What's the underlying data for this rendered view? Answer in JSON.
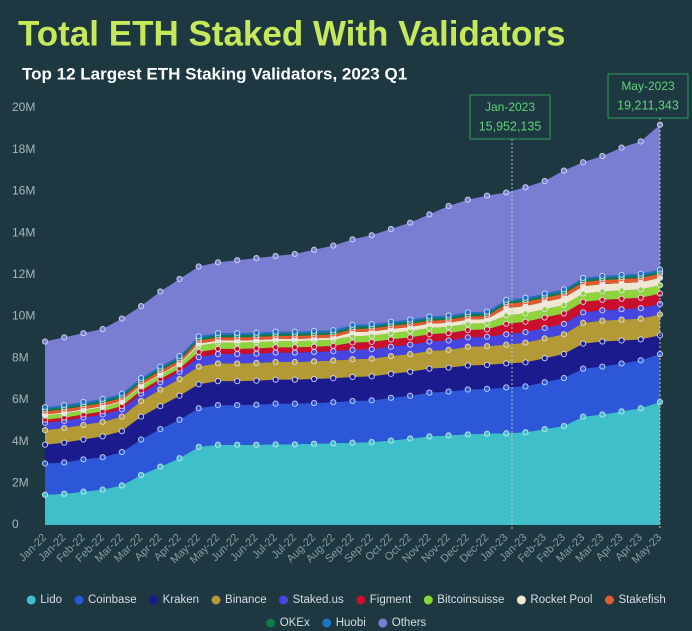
{
  "chart_data": {
    "type": "stacked-area",
    "title": "Total ETH Staked With Validators",
    "subtitle": "Top 12 Largest ETH Staking Validators, 2023 Q1",
    "categories": [
      "Jan-22",
      "Jan-22",
      "Feb-22",
      "Feb-22",
      "Mar-22",
      "Mar-22",
      "Apr-22",
      "Apr-22",
      "May-22",
      "May-22",
      "Jun-22",
      "Jun-22",
      "Jul-22",
      "Jul-22",
      "Aug-22",
      "Aug-22",
      "Sep-22",
      "Sep-22",
      "Oct-22",
      "Oct-22",
      "Nov-22",
      "Nov-22",
      "Dec-22",
      "Dec-22",
      "Jan-23",
      "Jan-23",
      "Feb-23",
      "Feb-23",
      "Mar-23",
      "Mar-23",
      "Apr-23",
      "Apr-23",
      "May-23"
    ],
    "series": [
      {
        "name": "Lido",
        "color": "#3fbfca",
        "values": [
          1450000,
          1500000,
          1600000,
          1700000,
          1900000,
          2400000,
          2800000,
          3200000,
          3750000,
          3850000,
          3850000,
          3850000,
          3870000,
          3870000,
          3900000,
          3920000,
          3950000,
          3980000,
          4050000,
          4150000,
          4250000,
          4300000,
          4350000,
          4380000,
          4400000,
          4450000,
          4600000,
          4750000,
          5200000,
          5300000,
          5450000,
          5600000,
          5900000
        ]
      },
      {
        "name": "Coinbase",
        "color": "#2b57d8",
        "values": [
          1500000,
          1500000,
          1550000,
          1550000,
          1600000,
          1700000,
          1800000,
          1850000,
          1850000,
          1900000,
          1900000,
          1920000,
          1950000,
          1950000,
          1950000,
          1970000,
          2000000,
          2000000,
          2050000,
          2050000,
          2100000,
          2100000,
          2150000,
          2150000,
          2200000,
          2200000,
          2250000,
          2300000,
          2300000,
          2300000,
          2300000,
          2300000,
          2300000
        ]
      },
      {
        "name": "Kraken",
        "color": "#1b1b8e",
        "values": [
          900000,
          950000,
          950000,
          1000000,
          1000000,
          1100000,
          1100000,
          1150000,
          1150000,
          1150000,
          1150000,
          1150000,
          1150000,
          1150000,
          1150000,
          1150000,
          1150000,
          1150000,
          1150000,
          1150000,
          1150000,
          1150000,
          1150000,
          1150000,
          1150000,
          1150000,
          1150000,
          1150000,
          1200000,
          1200000,
          1100000,
          1000000,
          900000
        ]
      },
      {
        "name": "Binance",
        "color": "#b39a36",
        "values": [
          700000,
          700000,
          700000,
          700000,
          700000,
          750000,
          800000,
          800000,
          850000,
          850000,
          850000,
          850000,
          850000,
          850000,
          850000,
          850000,
          850000,
          850000,
          850000,
          850000,
          850000,
          850000,
          900000,
          900000,
          900000,
          950000,
          950000,
          950000,
          1000000,
          1000000,
          1000000,
          1000000,
          1000000
        ]
      },
      {
        "name": "Staked.us",
        "color": "#4646df",
        "values": [
          350000,
          350000,
          350000,
          350000,
          350000,
          350000,
          350000,
          350000,
          450000,
          450000,
          450000,
          450000,
          450000,
          450000,
          450000,
          450000,
          450000,
          450000,
          450000,
          450000,
          450000,
          450000,
          450000,
          450000,
          500000,
          500000,
          500000,
          500000,
          500000,
          500000,
          500000,
          500000,
          500000
        ]
      },
      {
        "name": "Figment",
        "color": "#c8102e",
        "values": [
          150000,
          150000,
          150000,
          150000,
          150000,
          150000,
          150000,
          150000,
          250000,
          250000,
          250000,
          250000,
          250000,
          250000,
          250000,
          250000,
          350000,
          350000,
          350000,
          350000,
          350000,
          350000,
          350000,
          350000,
          500000,
          500000,
          500000,
          500000,
          500000,
          500000,
          500000,
          500000,
          500000
        ]
      },
      {
        "name": "Bitcoinsuisse",
        "color": "#8fd43c",
        "values": [
          200000,
          200000,
          200000,
          200000,
          200000,
          200000,
          200000,
          200000,
          300000,
          300000,
          300000,
          300000,
          300000,
          300000,
          300000,
          300000,
          300000,
          300000,
          300000,
          300000,
          300000,
          300000,
          300000,
          300000,
          400000,
          400000,
          400000,
          400000,
          400000,
          400000,
          400000,
          400000,
          400000
        ]
      },
      {
        "name": "Rocket Pool",
        "color": "#efe7cf",
        "values": [
          50000,
          50000,
          50000,
          50000,
          50000,
          50000,
          50000,
          50000,
          100000,
          100000,
          100000,
          100000,
          100000,
          100000,
          100000,
          100000,
          200000,
          200000,
          200000,
          200000,
          200000,
          200000,
          200000,
          200000,
          350000,
          350000,
          350000,
          350000,
          350000,
          350000,
          350000,
          350000,
          350000
        ]
      },
      {
        "name": "Stakefish",
        "color": "#e35a2f",
        "values": [
          150000,
          150000,
          150000,
          150000,
          150000,
          150000,
          150000,
          150000,
          150000,
          150000,
          150000,
          150000,
          150000,
          150000,
          150000,
          150000,
          150000,
          150000,
          150000,
          150000,
          150000,
          150000,
          150000,
          150000,
          200000,
          200000,
          200000,
          200000,
          200000,
          200000,
          200000,
          200000,
          200000
        ]
      },
      {
        "name": "OKEx",
        "color": "#0f7a4a",
        "values": [
          100000,
          100000,
          100000,
          100000,
          100000,
          100000,
          100000,
          100000,
          100000,
          100000,
          100000,
          100000,
          100000,
          100000,
          100000,
          100000,
          100000,
          100000,
          100000,
          100000,
          100000,
          100000,
          100000,
          100000,
          100000,
          100000,
          100000,
          100000,
          100000,
          100000,
          100000,
          100000,
          100000
        ]
      },
      {
        "name": "Huobi",
        "color": "#1f74c4",
        "values": [
          100000,
          100000,
          100000,
          100000,
          100000,
          100000,
          100000,
          100000,
          100000,
          100000,
          100000,
          100000,
          100000,
          100000,
          100000,
          100000,
          100000,
          100000,
          100000,
          100000,
          100000,
          100000,
          100000,
          100000,
          100000,
          100000,
          100000,
          100000,
          100000,
          100000,
          100000,
          100000,
          100000
        ]
      },
      {
        "name": "Others",
        "color": "#7a7ed2",
        "values": [
          3150000,
          3250000,
          3300000,
          3350000,
          3600000,
          3450000,
          3600000,
          3700000,
          3350000,
          3400000,
          3500000,
          3580000,
          3630000,
          3730000,
          3900000,
          4060000,
          4100000,
          4270000,
          4450000,
          4650000,
          4900000,
          5250000,
          5400000,
          5570000,
          5150000,
          5300000,
          5400000,
          5700000,
          5550000,
          5750000,
          6100000,
          6350000,
          6950000
        ]
      }
    ],
    "ylim": [
      0,
      20000000
    ],
    "yticks": [
      0,
      {
        "value": 2000000,
        "label": "2M"
      },
      {
        "value": 4000000,
        "label": "4M"
      },
      {
        "value": 6000000,
        "label": "6M"
      },
      {
        "value": 8000000,
        "label": "8M"
      },
      {
        "value": 10000000,
        "label": "10M"
      },
      {
        "value": 12000000,
        "label": "12M"
      },
      {
        "value": 14000000,
        "label": "14M"
      },
      {
        "value": 16000000,
        "label": "16M"
      },
      {
        "value": 18000000,
        "label": "18M"
      },
      {
        "value": 20000000,
        "label": "20M"
      }
    ],
    "grid": false,
    "annotations": [
      {
        "x": "Jan-2023",
        "value": 15952135,
        "label": "15,952,135"
      },
      {
        "x": "May-2023",
        "value": 19211343,
        "label": "19,211,343"
      }
    ]
  }
}
